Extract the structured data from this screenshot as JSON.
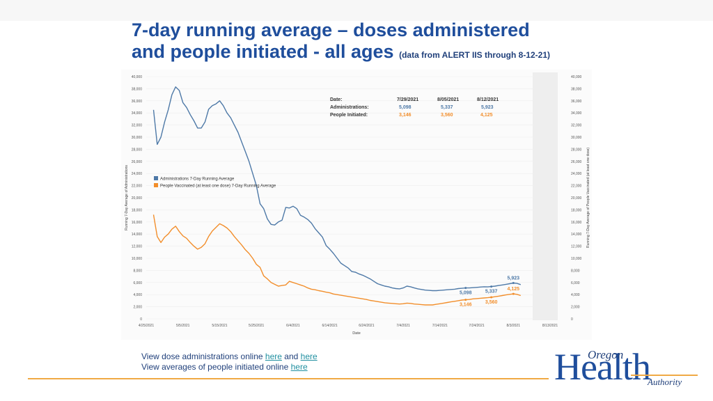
{
  "slide": {
    "title_line1": "7-day running average – doses administered",
    "title_line2": "and people initiated - all ages",
    "title_note": "(data from ALERT IIS through 8-12-21)"
  },
  "chart_data": {
    "type": "line",
    "xlabel": "Date",
    "ylabel_left": "Running 7-Day Average of Administrations",
    "ylabel_right": "Running 7-Day Average of People Vaccinated (at least one dose)",
    "ylim": [
      0,
      40000
    ],
    "yticks": [
      "0",
      "2,000",
      "4,000",
      "6,000",
      "8,000",
      "10,000",
      "12,000",
      "14,000",
      "16,000",
      "18,000",
      "20,000",
      "22,000",
      "24,000",
      "26,000",
      "28,000",
      "30,000",
      "32,000",
      "34,000",
      "36,000",
      "38,000",
      "40,000"
    ],
    "xlim_days": [
      0,
      110
    ],
    "xticks": [
      {
        "label": "4/25/2021",
        "day": 0
      },
      {
        "label": "5/5/2021",
        "day": 10
      },
      {
        "label": "5/15/2021",
        "day": 20
      },
      {
        "label": "5/25/2021",
        "day": 30
      },
      {
        "label": "6/4/2021",
        "day": 40
      },
      {
        "label": "6/14/2021",
        "day": 50
      },
      {
        "label": "6/24/2021",
        "day": 60
      },
      {
        "label": "7/4/2021",
        "day": 70
      },
      {
        "label": "7/14/2021",
        "day": 80
      },
      {
        "label": "7/24/2021",
        "day": 90
      },
      {
        "label": "8/3/2021",
        "day": 100
      },
      {
        "label": "8/13/2021",
        "day": 110
      }
    ],
    "legend": [
      {
        "name": "Administrations 7-Day Running Average",
        "color": "#4e79a7"
      },
      {
        "name": "People Vaccinated (at least one dose) 7-Day Running Average",
        "color": "#f28e2b"
      }
    ],
    "series": [
      {
        "name": "Administrations 7-Day Running Average",
        "color": "#4e79a7",
        "points": [
          [
            2,
            34500
          ],
          [
            3,
            28800
          ],
          [
            4,
            30000
          ],
          [
            5,
            32500
          ],
          [
            6,
            34500
          ],
          [
            7,
            37000
          ],
          [
            8,
            38300
          ],
          [
            9,
            37700
          ],
          [
            10,
            35700
          ],
          [
            11,
            34900
          ],
          [
            12,
            33700
          ],
          [
            13,
            32700
          ],
          [
            14,
            31500
          ],
          [
            15,
            31500
          ],
          [
            16,
            32500
          ],
          [
            17,
            34600
          ],
          [
            18,
            35200
          ],
          [
            19,
            35500
          ],
          [
            20,
            36000
          ],
          [
            21,
            35200
          ],
          [
            22,
            34000
          ],
          [
            23,
            33200
          ],
          [
            24,
            32000
          ],
          [
            25,
            30800
          ],
          [
            26,
            29200
          ],
          [
            27,
            27600
          ],
          [
            28,
            26000
          ],
          [
            29,
            24000
          ],
          [
            30,
            22000
          ],
          [
            31,
            19000
          ],
          [
            32,
            18200
          ],
          [
            33,
            16500
          ],
          [
            34,
            15600
          ],
          [
            35,
            15500
          ],
          [
            36,
            16000
          ],
          [
            37,
            16300
          ],
          [
            38,
            18400
          ],
          [
            39,
            18300
          ],
          [
            40,
            18600
          ],
          [
            41,
            18200
          ],
          [
            42,
            17100
          ],
          [
            43,
            16800
          ],
          [
            44,
            16400
          ],
          [
            45,
            15800
          ],
          [
            46,
            14900
          ],
          [
            47,
            14200
          ],
          [
            48,
            13500
          ],
          [
            49,
            12100
          ],
          [
            50,
            11500
          ],
          [
            51,
            10800
          ],
          [
            52,
            10000
          ],
          [
            53,
            9200
          ],
          [
            54,
            8800
          ],
          [
            55,
            8400
          ],
          [
            56,
            7800
          ],
          [
            57,
            7700
          ],
          [
            58,
            7400
          ],
          [
            59,
            7200
          ],
          [
            60,
            6900
          ],
          [
            61,
            6600
          ],
          [
            62,
            6200
          ],
          [
            63,
            5800
          ],
          [
            64,
            5600
          ],
          [
            65,
            5400
          ],
          [
            66,
            5300
          ],
          [
            67,
            5100
          ],
          [
            68,
            5000
          ],
          [
            69,
            4950
          ],
          [
            70,
            5100
          ],
          [
            71,
            5400
          ],
          [
            72,
            5300
          ],
          [
            73,
            5100
          ],
          [
            74,
            4950
          ],
          [
            75,
            4850
          ],
          [
            76,
            4750
          ],
          [
            77,
            4700
          ],
          [
            78,
            4650
          ],
          [
            79,
            4650
          ],
          [
            80,
            4700
          ],
          [
            81,
            4750
          ],
          [
            82,
            4800
          ],
          [
            83,
            4850
          ],
          [
            84,
            4900
          ],
          [
            85,
            5000
          ],
          [
            86,
            5050
          ],
          [
            87,
            5098
          ],
          [
            88,
            5100
          ],
          [
            89,
            5150
          ],
          [
            90,
            5200
          ],
          [
            91,
            5250
          ],
          [
            92,
            5300
          ],
          [
            93,
            5280
          ],
          [
            94,
            5337
          ],
          [
            95,
            5400
          ],
          [
            96,
            5500
          ],
          [
            97,
            5600
          ],
          [
            98,
            5700
          ],
          [
            99,
            5800
          ],
          [
            100,
            5923
          ],
          [
            101,
            5850
          ],
          [
            102,
            5650
          ]
        ]
      },
      {
        "name": "People Vaccinated (at least one dose) 7-Day Running Average",
        "color": "#f28e2b",
        "points": [
          [
            2,
            17200
          ],
          [
            3,
            13600
          ],
          [
            4,
            12600
          ],
          [
            5,
            13500
          ],
          [
            6,
            14000
          ],
          [
            7,
            14800
          ],
          [
            8,
            15300
          ],
          [
            9,
            14400
          ],
          [
            10,
            13700
          ],
          [
            11,
            13300
          ],
          [
            12,
            12600
          ],
          [
            13,
            12000
          ],
          [
            14,
            11500
          ],
          [
            15,
            11800
          ],
          [
            16,
            12400
          ],
          [
            17,
            13600
          ],
          [
            18,
            14500
          ],
          [
            19,
            15100
          ],
          [
            20,
            15700
          ],
          [
            21,
            15400
          ],
          [
            22,
            15000
          ],
          [
            23,
            14400
          ],
          [
            24,
            13600
          ],
          [
            25,
            12900
          ],
          [
            26,
            12200
          ],
          [
            27,
            11400
          ],
          [
            28,
            10800
          ],
          [
            29,
            10000
          ],
          [
            30,
            9000
          ],
          [
            31,
            8500
          ],
          [
            32,
            7100
          ],
          [
            33,
            6600
          ],
          [
            34,
            6000
          ],
          [
            35,
            5700
          ],
          [
            36,
            5400
          ],
          [
            37,
            5500
          ],
          [
            38,
            5600
          ],
          [
            39,
            6200
          ],
          [
            40,
            6000
          ],
          [
            41,
            5800
          ],
          [
            42,
            5600
          ],
          [
            43,
            5400
          ],
          [
            44,
            5100
          ],
          [
            45,
            4900
          ],
          [
            46,
            4800
          ],
          [
            47,
            4650
          ],
          [
            48,
            4550
          ],
          [
            49,
            4400
          ],
          [
            50,
            4300
          ],
          [
            51,
            4100
          ],
          [
            52,
            4000
          ],
          [
            53,
            3900
          ],
          [
            54,
            3800
          ],
          [
            55,
            3700
          ],
          [
            56,
            3600
          ],
          [
            57,
            3500
          ],
          [
            58,
            3400
          ],
          [
            59,
            3300
          ],
          [
            60,
            3200
          ],
          [
            61,
            3050
          ],
          [
            62,
            2950
          ],
          [
            63,
            2850
          ],
          [
            64,
            2750
          ],
          [
            65,
            2650
          ],
          [
            66,
            2600
          ],
          [
            67,
            2550
          ],
          [
            68,
            2500
          ],
          [
            69,
            2450
          ],
          [
            70,
            2500
          ],
          [
            71,
            2600
          ],
          [
            72,
            2550
          ],
          [
            73,
            2450
          ],
          [
            74,
            2400
          ],
          [
            75,
            2350
          ],
          [
            76,
            2300
          ],
          [
            77,
            2300
          ],
          [
            78,
            2300
          ],
          [
            79,
            2400
          ],
          [
            80,
            2500
          ],
          [
            81,
            2600
          ],
          [
            82,
            2700
          ],
          [
            83,
            2800
          ],
          [
            84,
            2900
          ],
          [
            85,
            3000
          ],
          [
            86,
            3100
          ],
          [
            87,
            3146
          ],
          [
            88,
            3200
          ],
          [
            89,
            3300
          ],
          [
            90,
            3350
          ],
          [
            91,
            3400
          ],
          [
            92,
            3450
          ],
          [
            93,
            3500
          ],
          [
            94,
            3560
          ],
          [
            95,
            3650
          ],
          [
            96,
            3750
          ],
          [
            97,
            3850
          ],
          [
            98,
            3950
          ],
          [
            99,
            4050
          ],
          [
            100,
            4125
          ],
          [
            101,
            4050
          ],
          [
            102,
            3850
          ]
        ]
      }
    ],
    "annotations": [
      {
        "text": "5,098",
        "day": 87,
        "value": 5098,
        "series": 0,
        "pos": "below"
      },
      {
        "text": "5,337",
        "day": 94,
        "value": 5337,
        "series": 0,
        "pos": "below"
      },
      {
        "text": "5,923",
        "day": 100,
        "value": 5923,
        "series": 0,
        "pos": "above"
      },
      {
        "text": "3,146",
        "day": 87,
        "value": 3146,
        "series": 1,
        "pos": "below"
      },
      {
        "text": "3,560",
        "day": 94,
        "value": 3560,
        "series": 1,
        "pos": "below"
      },
      {
        "text": "4,125",
        "day": 100,
        "value": 4125,
        "series": 1,
        "pos": "above"
      }
    ],
    "summary_table": {
      "row_labels": [
        "Date:",
        "Administrations:",
        "People Initiated:"
      ],
      "columns": [
        {
          "date": "7/29/2021",
          "administrations": "5,098",
          "people": "3,146"
        },
        {
          "date": "8/05/2021",
          "administrations": "5,337",
          "people": "3,560"
        },
        {
          "date": "8/12/2021",
          "administrations": "5,923",
          "people": "4,125"
        }
      ]
    }
  },
  "links": {
    "line1_text": "View dose administrations online",
    "line1_link1": "here",
    "line1_and": "and",
    "line1_link2": "here",
    "line2_text": "View averages of people initiated online",
    "line2_link": "here"
  },
  "logo": {
    "word1": "Oregon",
    "word2": "Health",
    "word3": "Authority"
  },
  "colors": {
    "title": "#1f4e9c",
    "admin_series": "#4e79a7",
    "people_series": "#f28e2b",
    "rule": "#f0a944"
  }
}
